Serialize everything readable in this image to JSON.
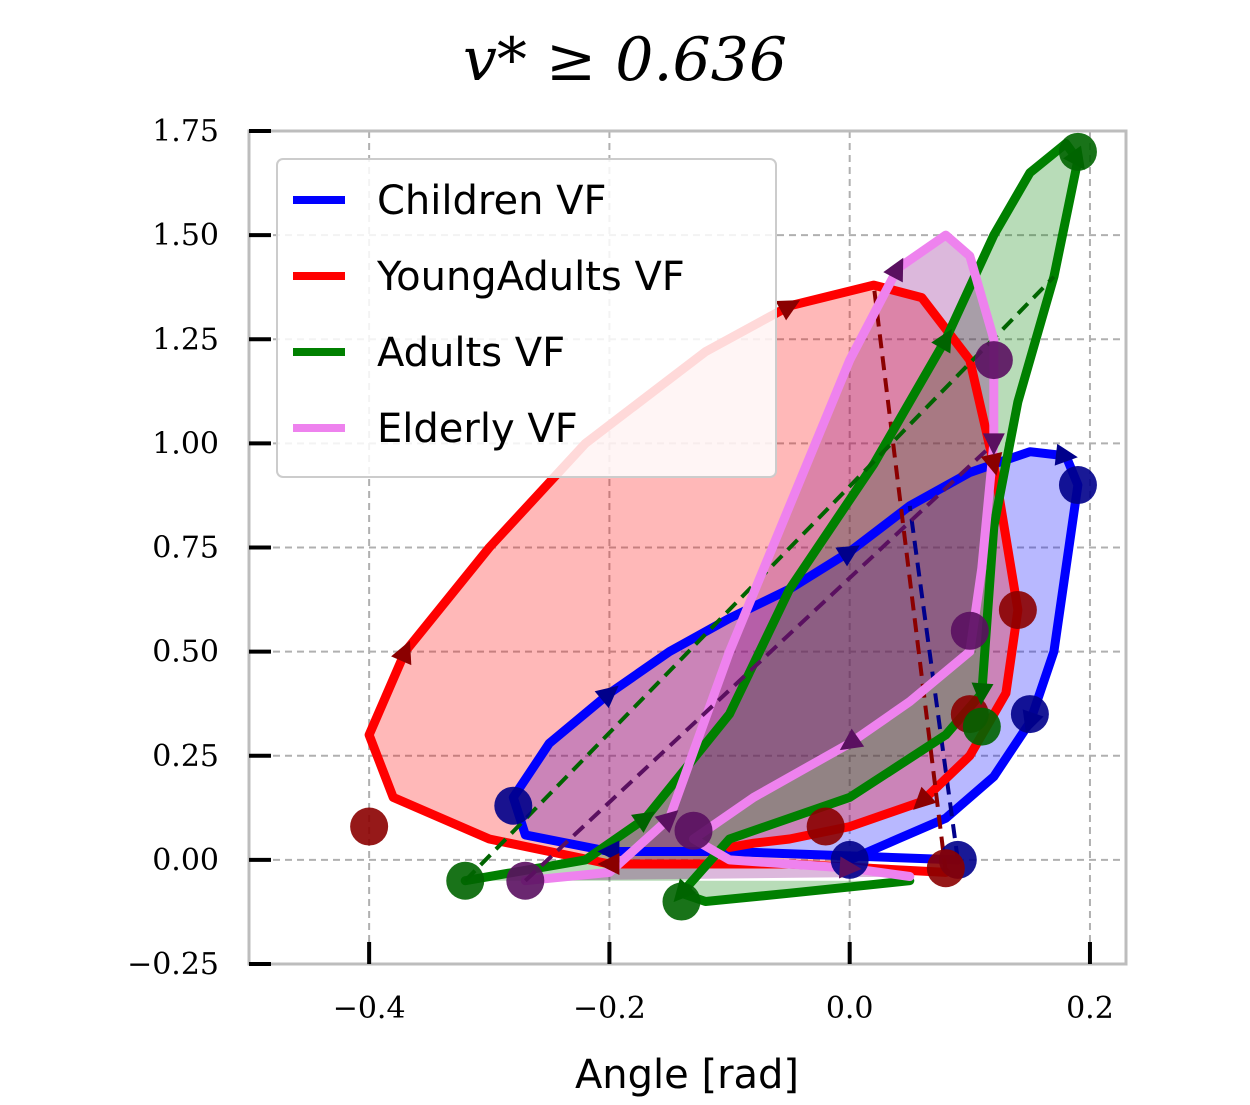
{
  "chart_data": {
    "type": "line",
    "title": "v* ≥ 0.636",
    "xlabel": "Angle [rad]",
    "ylabel": "",
    "xlim": [
      -0.5,
      0.23
    ],
    "ylim": [
      -0.25,
      1.75
    ],
    "xticks": [
      -0.4,
      -0.2,
      0.0,
      0.2
    ],
    "xtick_labels": [
      "−0.4",
      "−0.2",
      "0.0",
      "0.2"
    ],
    "yticks": [
      -0.25,
      0.0,
      0.25,
      0.5,
      0.75,
      1.0,
      1.25,
      1.5,
      1.75
    ],
    "ytick_labels": [
      "−0.25",
      "0.00",
      "0.25",
      "0.50",
      "0.75",
      "1.00",
      "1.25",
      "1.50",
      "1.75"
    ],
    "grid": true,
    "legend_position": "top-left",
    "series": [
      {
        "name": "Children VF",
        "color": "#0000ff",
        "fill": "#0000ff",
        "marker_color": "#00008b",
        "x": [
          0.09,
          -0.1,
          -0.2,
          -0.27,
          -0.28,
          -0.25,
          -0.2,
          -0.15,
          -0.1,
          -0.05,
          0.0,
          0.05,
          0.1,
          0.15,
          0.18,
          0.19,
          0.18,
          0.17,
          0.15,
          0.12,
          0.08,
          0.04,
          0.0
        ],
        "y": [
          0.0,
          0.02,
          0.02,
          0.06,
          0.15,
          0.28,
          0.4,
          0.5,
          0.58,
          0.65,
          0.74,
          0.85,
          0.93,
          0.98,
          0.97,
          0.9,
          0.7,
          0.5,
          0.33,
          0.2,
          0.1,
          0.05,
          0.0
        ],
        "markers_x": [
          -0.28,
          0.09,
          0.15,
          0.19,
          0.0
        ],
        "markers_y": [
          0.13,
          0.0,
          0.35,
          0.9,
          0.0
        ]
      },
      {
        "name": "YoungAdults VF",
        "color": "#ff0000",
        "fill": "#ff0000",
        "marker_color": "#8b0000",
        "x": [
          0.08,
          -0.05,
          -0.2,
          -0.3,
          -0.38,
          -0.4,
          -0.37,
          -0.3,
          -0.22,
          -0.12,
          -0.05,
          0.02,
          0.06,
          0.1,
          0.12,
          0.14,
          0.13,
          0.1,
          0.06,
          0.0,
          -0.05,
          -0.08,
          -0.1
        ],
        "y": [
          -0.03,
          -0.01,
          -0.01,
          0.05,
          0.15,
          0.3,
          0.5,
          0.75,
          1.0,
          1.22,
          1.33,
          1.38,
          1.35,
          1.2,
          0.95,
          0.6,
          0.4,
          0.25,
          0.14,
          0.08,
          0.05,
          0.04,
          0.03
        ],
        "markers_x": [
          -0.4,
          0.08,
          0.14,
          0.1,
          -0.02
        ],
        "markers_y": [
          0.08,
          -0.02,
          0.6,
          0.35,
          0.08
        ]
      },
      {
        "name": "Adults VF",
        "color": "#008000",
        "fill": "#008000",
        "marker_color": "#006400",
        "x": [
          -0.32,
          -0.22,
          -0.17,
          -0.1,
          -0.05,
          0.02,
          0.08,
          0.12,
          0.15,
          0.18,
          0.19,
          0.17,
          0.14,
          0.12,
          0.11,
          0.08,
          0.0,
          -0.1,
          -0.14,
          -0.12,
          -0.05,
          0.05
        ],
        "y": [
          -0.05,
          0.0,
          0.1,
          0.35,
          0.65,
          0.95,
          1.25,
          1.5,
          1.65,
          1.72,
          1.68,
          1.4,
          1.1,
          0.8,
          0.4,
          0.3,
          0.15,
          0.05,
          -0.08,
          -0.1,
          -0.08,
          -0.05
        ],
        "markers_x": [
          -0.32,
          -0.14,
          0.19,
          0.11
        ],
        "markers_y": [
          -0.05,
          -0.1,
          1.7,
          0.32
        ]
      },
      {
        "name": "Elderly VF",
        "color": "#ee82ee",
        "fill": "#800080",
        "marker_color": "#5a1060",
        "x": [
          -0.27,
          -0.2,
          -0.15,
          -0.1,
          -0.05,
          0.0,
          0.04,
          0.08,
          0.1,
          0.12,
          0.12,
          0.11,
          0.1,
          0.05,
          0.0,
          -0.08,
          -0.13,
          -0.1,
          0.0,
          0.05
        ],
        "y": [
          -0.05,
          -0.03,
          0.1,
          0.5,
          0.85,
          1.2,
          1.42,
          1.5,
          1.45,
          1.25,
          1.0,
          0.7,
          0.5,
          0.38,
          0.28,
          0.15,
          0.05,
          0.0,
          -0.02,
          -0.04
        ],
        "markers_x": [
          -0.27,
          -0.13,
          0.12,
          0.1
        ],
        "markers_y": [
          -0.05,
          0.07,
          1.2,
          0.55
        ]
      }
    ]
  }
}
